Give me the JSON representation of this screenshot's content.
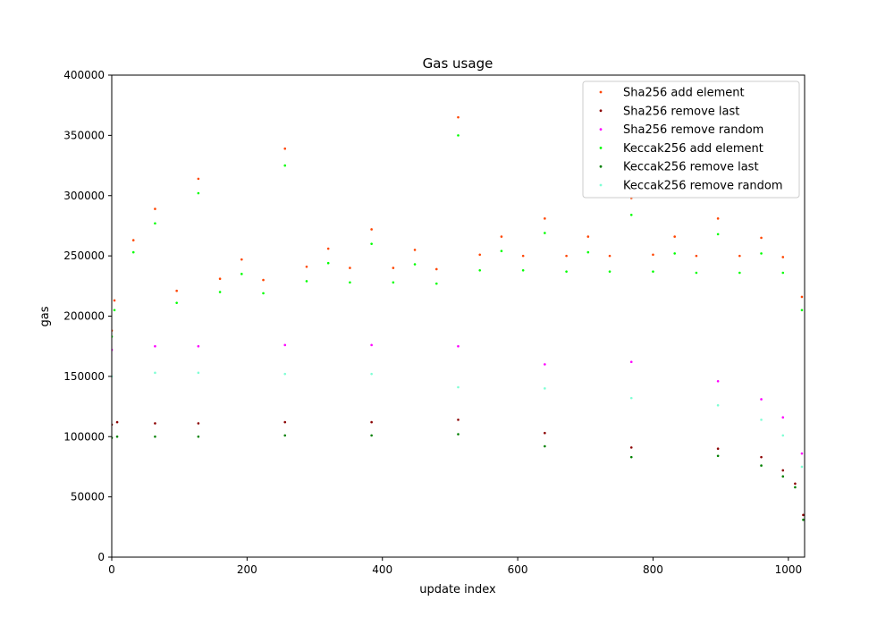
{
  "chart_data": {
    "type": "scatter",
    "title": "Gas usage",
    "xlabel": "update index",
    "ylabel": "gas",
    "xlim": [
      0,
      1024
    ],
    "ylim": [
      0,
      400000
    ],
    "xticks": [
      0,
      200,
      400,
      600,
      800,
      1000
    ],
    "yticks": [
      0,
      50000,
      100000,
      150000,
      200000,
      250000,
      300000,
      350000,
      400000
    ],
    "grid": false,
    "legend_position": "top-right",
    "series": [
      {
        "name": "Sha256 add element",
        "color": "#ff4500",
        "x": [
          0,
          4,
          32,
          64,
          96,
          128,
          160,
          192,
          224,
          256,
          288,
          320,
          352,
          384,
          416,
          448,
          480,
          512,
          544,
          576,
          608,
          640,
          672,
          704,
          736,
          768,
          800,
          832,
          864,
          896,
          928,
          960,
          992,
          1020
        ],
        "y": [
          188000,
          213000,
          263000,
          289000,
          221000,
          314000,
          231000,
          247000,
          230000,
          339000,
          241000,
          256000,
          240000,
          272000,
          240000,
          255000,
          239000,
          365000,
          251000,
          266000,
          250000,
          281000,
          250000,
          266000,
          250000,
          298000,
          251000,
          266000,
          250000,
          281000,
          250000,
          265000,
          249000,
          216000
        ]
      },
      {
        "name": "Sha256 remove last",
        "color": "#8b0000",
        "x": [
          0,
          8,
          64,
          128,
          256,
          384,
          512,
          640,
          768,
          896,
          960,
          992,
          1010,
          1022
        ],
        "y": [
          110000,
          112000,
          111000,
          111000,
          112000,
          112000,
          114000,
          103000,
          91000,
          90000,
          83000,
          72000,
          61000,
          35000
        ]
      },
      {
        "name": "Sha256 remove random",
        "color": "#ff00ff",
        "x": [
          0,
          64,
          128,
          256,
          384,
          512,
          640,
          768,
          896,
          960,
          992,
          1020
        ],
        "y": [
          172000,
          175000,
          175000,
          176000,
          176000,
          175000,
          160000,
          162000,
          146000,
          131000,
          116000,
          86000
        ]
      },
      {
        "name": "Keccak256 add element",
        "color": "#00ff00",
        "x": [
          0,
          4,
          32,
          64,
          96,
          128,
          160,
          192,
          224,
          256,
          288,
          320,
          352,
          384,
          416,
          448,
          480,
          512,
          544,
          576,
          608,
          640,
          672,
          704,
          736,
          768,
          800,
          832,
          864,
          896,
          928,
          960,
          992,
          1020
        ],
        "y": [
          183000,
          205000,
          253000,
          277000,
          211000,
          302000,
          220000,
          235000,
          219000,
          325000,
          229000,
          244000,
          228000,
          260000,
          228000,
          243000,
          227000,
          350000,
          238000,
          254000,
          238000,
          269000,
          237000,
          253000,
          237000,
          284000,
          237000,
          252000,
          236000,
          268000,
          236000,
          252000,
          236000,
          205000
        ]
      },
      {
        "name": "Keccak256 remove last",
        "color": "#008000",
        "x": [
          0,
          8,
          64,
          128,
          256,
          384,
          512,
          640,
          768,
          896,
          960,
          992,
          1010,
          1022
        ],
        "y": [
          99000,
          100000,
          100000,
          100000,
          101000,
          101000,
          102000,
          92000,
          83000,
          84000,
          76000,
          67000,
          58000,
          31000
        ]
      },
      {
        "name": "Keccak256 remove random",
        "color": "#7fffd4",
        "x": [
          0,
          64,
          128,
          256,
          384,
          512,
          640,
          768,
          896,
          960,
          992,
          1020
        ],
        "y": [
          150000,
          153000,
          153000,
          152000,
          152000,
          141000,
          140000,
          132000,
          126000,
          114000,
          101000,
          75000
        ]
      }
    ]
  }
}
